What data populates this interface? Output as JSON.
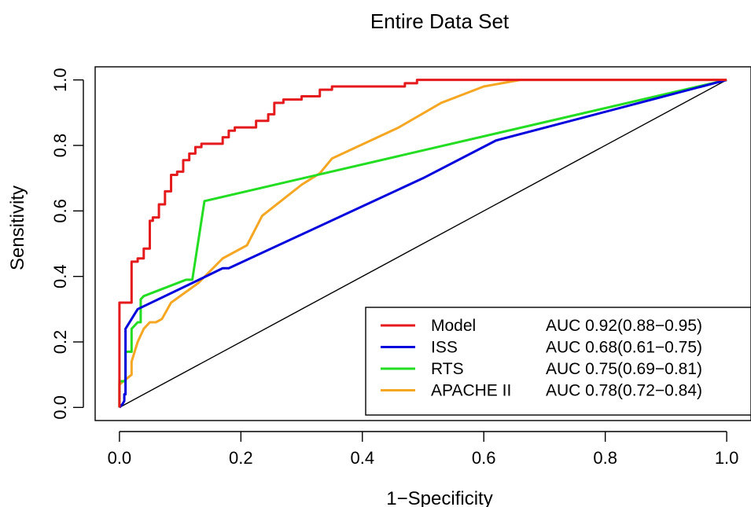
{
  "chart_data": {
    "type": "line",
    "title": "Entire Data Set",
    "xlabel": "1−Specificity",
    "ylabel": "Sensitivity",
    "xlim": [
      -0.04,
      1.04
    ],
    "ylim": [
      -0.04,
      1.04
    ],
    "x_ticks": [
      "0.0",
      "0.2",
      "0.4",
      "0.6",
      "0.8",
      "1.0"
    ],
    "y_ticks": [
      "0.0",
      "0.2",
      "0.4",
      "0.6",
      "0.8",
      "1.0"
    ],
    "grid": false,
    "legend_position": "bottom-right",
    "reference_line": [
      [
        0,
        0
      ],
      [
        1,
        1
      ]
    ],
    "series": [
      {
        "name": "Model",
        "auc_label": "AUC 0.92(0.88−0.95)",
        "color": "#e41a1c",
        "points": [
          [
            0,
            0
          ],
          [
            0,
            0.09
          ],
          [
            0,
            0.32
          ],
          [
            0.02,
            0.32
          ],
          [
            0.02,
            0.445
          ],
          [
            0.03,
            0.445
          ],
          [
            0.03,
            0.455
          ],
          [
            0.04,
            0.455
          ],
          [
            0.04,
            0.485
          ],
          [
            0.05,
            0.485
          ],
          [
            0.05,
            0.57
          ],
          [
            0.055,
            0.57
          ],
          [
            0.055,
            0.58
          ],
          [
            0.065,
            0.58
          ],
          [
            0.065,
            0.62
          ],
          [
            0.075,
            0.62
          ],
          [
            0.075,
            0.66
          ],
          [
            0.085,
            0.66
          ],
          [
            0.085,
            0.71
          ],
          [
            0.095,
            0.71
          ],
          [
            0.095,
            0.72
          ],
          [
            0.105,
            0.72
          ],
          [
            0.105,
            0.755
          ],
          [
            0.115,
            0.755
          ],
          [
            0.115,
            0.775
          ],
          [
            0.125,
            0.775
          ],
          [
            0.125,
            0.795
          ],
          [
            0.135,
            0.795
          ],
          [
            0.135,
            0.805
          ],
          [
            0.17,
            0.805
          ],
          [
            0.17,
            0.825
          ],
          [
            0.18,
            0.825
          ],
          [
            0.18,
            0.845
          ],
          [
            0.19,
            0.845
          ],
          [
            0.19,
            0.855
          ],
          [
            0.225,
            0.855
          ],
          [
            0.225,
            0.875
          ],
          [
            0.245,
            0.875
          ],
          [
            0.245,
            0.895
          ],
          [
            0.255,
            0.895
          ],
          [
            0.255,
            0.93
          ],
          [
            0.27,
            0.93
          ],
          [
            0.27,
            0.94
          ],
          [
            0.3,
            0.94
          ],
          [
            0.3,
            0.95
          ],
          [
            0.33,
            0.95
          ],
          [
            0.33,
            0.97
          ],
          [
            0.35,
            0.97
          ],
          [
            0.35,
            0.98
          ],
          [
            0.47,
            0.98
          ],
          [
            0.47,
            0.99
          ],
          [
            0.49,
            0.99
          ],
          [
            0.49,
            1.0
          ],
          [
            1.0,
            1.0
          ]
        ]
      },
      {
        "name": "ISS",
        "auc_label": "AUC 0.68(0.61−0.75)",
        "color": "#0000dd",
        "points": [
          [
            0,
            0
          ],
          [
            0.005,
            0.01
          ],
          [
            0.008,
            0.02
          ],
          [
            0.008,
            0.04
          ],
          [
            0.01,
            0.04
          ],
          [
            0.01,
            0.24
          ],
          [
            0.02,
            0.27
          ],
          [
            0.03,
            0.3
          ],
          [
            0.12,
            0.38
          ],
          [
            0.17,
            0.425
          ],
          [
            0.18,
            0.425
          ],
          [
            0.5,
            0.7
          ],
          [
            0.62,
            0.815
          ],
          [
            1.0,
            1.0
          ]
        ]
      },
      {
        "name": "RTS",
        "auc_label": "AUC 0.75(0.69−0.81)",
        "color": "#22dd22",
        "points": [
          [
            0,
            0
          ],
          [
            0,
            0.08
          ],
          [
            0.01,
            0.08
          ],
          [
            0.01,
            0.17
          ],
          [
            0.02,
            0.17
          ],
          [
            0.02,
            0.24
          ],
          [
            0.03,
            0.26
          ],
          [
            0.035,
            0.26
          ],
          [
            0.035,
            0.33
          ],
          [
            0.04,
            0.34
          ],
          [
            0.11,
            0.39
          ],
          [
            0.12,
            0.39
          ],
          [
            0.14,
            0.63
          ],
          [
            1.0,
            1.0
          ]
        ]
      },
      {
        "name": "APACHE II",
        "auc_label": "AUC 0.78(0.72−0.84)",
        "color": "#f5a623",
        "points": [
          [
            0,
            0
          ],
          [
            0,
            0.07
          ],
          [
            0.02,
            0.1
          ],
          [
            0.02,
            0.14
          ],
          [
            0.03,
            0.2
          ],
          [
            0.04,
            0.24
          ],
          [
            0.05,
            0.26
          ],
          [
            0.06,
            0.26
          ],
          [
            0.07,
            0.27
          ],
          [
            0.085,
            0.32
          ],
          [
            0.13,
            0.38
          ],
          [
            0.17,
            0.455
          ],
          [
            0.21,
            0.495
          ],
          [
            0.235,
            0.585
          ],
          [
            0.3,
            0.68
          ],
          [
            0.33,
            0.715
          ],
          [
            0.35,
            0.76
          ],
          [
            0.46,
            0.855
          ],
          [
            0.53,
            0.93
          ],
          [
            0.6,
            0.98
          ],
          [
            0.66,
            1.0
          ],
          [
            1.0,
            1.0
          ]
        ]
      }
    ]
  }
}
